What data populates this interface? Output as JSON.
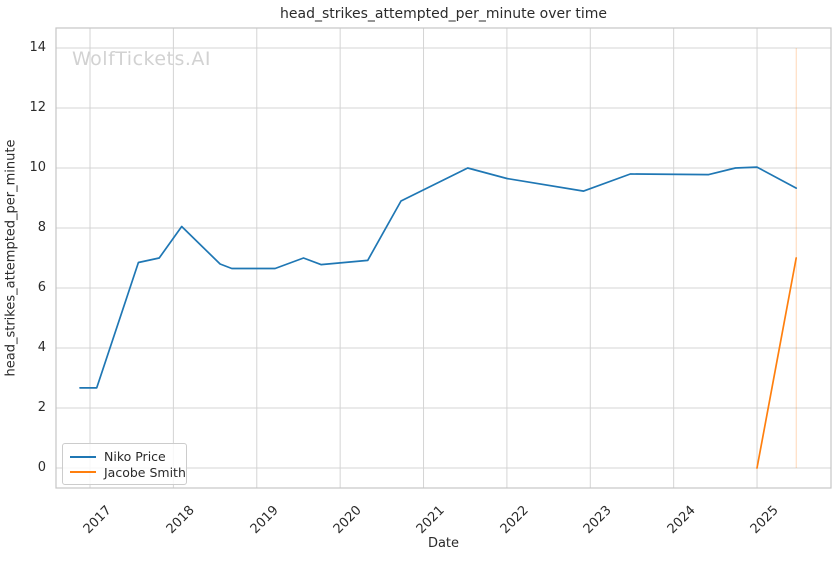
{
  "watermark": {
    "text": "WolfTickets.AI",
    "color": "#d2d2d2"
  },
  "colors": {
    "grid": "#d4d4d4",
    "spine": "#c6c6c6",
    "text": "#2b2b2b",
    "background": "#ffffff"
  },
  "chart_data": {
    "type": "line",
    "title": "head_strikes_attempted_per_minute over time",
    "xlabel": "Date",
    "ylabel": "head_strikes_attempted_per_minute",
    "x_ticks": [
      2017,
      2018,
      2019,
      2020,
      2021,
      2022,
      2023,
      2024,
      2025
    ],
    "x_tick_labels": [
      "2017",
      "2018",
      "2019",
      "2020",
      "2021",
      "2022",
      "2023",
      "2024",
      "2025"
    ],
    "y_ticks": [
      0,
      2,
      4,
      6,
      8,
      10,
      12,
      14
    ],
    "y_tick_labels": [
      "0",
      "2",
      "4",
      "6",
      "8",
      "10",
      "12",
      "14"
    ],
    "xlim": [
      2016.592,
      2025.887
    ],
    "ylim": [
      -0.667,
      14.667
    ],
    "grid": true,
    "legend_position": "lower left",
    "series": [
      {
        "name": "Niko Price",
        "color": "#1f77b4",
        "points": [
          [
            2016.88,
            2.67
          ],
          [
            2017.08,
            2.67
          ],
          [
            2017.58,
            6.85
          ],
          [
            2017.83,
            7.0
          ],
          [
            2018.1,
            8.05
          ],
          [
            2018.56,
            6.8
          ],
          [
            2018.7,
            6.65
          ],
          [
            2019.22,
            6.65
          ],
          [
            2019.56,
            7.0
          ],
          [
            2019.77,
            6.78
          ],
          [
            2020.33,
            6.92
          ],
          [
            2020.73,
            8.9
          ],
          [
            2021.53,
            10.0
          ],
          [
            2022.0,
            9.65
          ],
          [
            2022.92,
            9.23
          ],
          [
            2023.48,
            9.8
          ],
          [
            2024.42,
            9.78
          ],
          [
            2024.74,
            10.0
          ],
          [
            2025.0,
            10.03
          ],
          [
            2025.47,
            9.33
          ]
        ]
      },
      {
        "name": "Jacobe Smith",
        "color": "#ff7f0e",
        "points": [
          [
            2025.0,
            0.0
          ],
          [
            2025.47,
            7.0
          ]
        ]
      }
    ],
    "marker_line": {
      "x": 2025.47,
      "y0": 0,
      "y1": 14,
      "color": "#ff7f0e",
      "opacity": 0.3
    }
  }
}
